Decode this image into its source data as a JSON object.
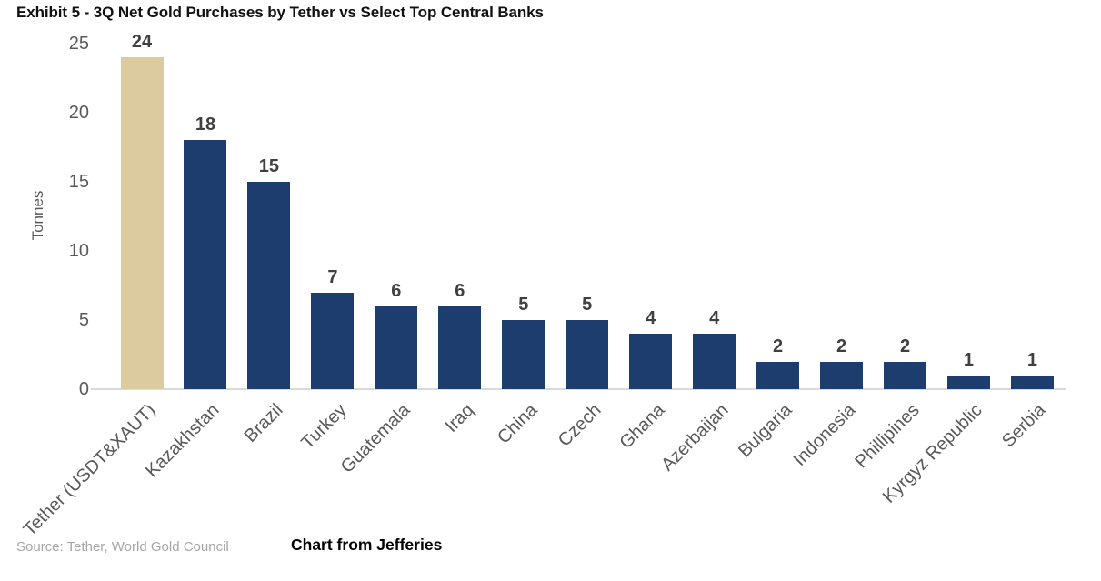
{
  "title": "Exhibit 5 - 3Q Net Gold Purchases by Tether vs Select Top Central Banks",
  "source": "Source: Tether, World Gold Council",
  "caption": "Chart from Jefferies",
  "colors": {
    "tether_bar": "#DBCB9E",
    "bank_bar": "#1C3D6E",
    "axis_line": "#D9D9D9",
    "tick_text": "#595959",
    "value_text": "#404040",
    "title_text": "#111111",
    "source_text": "#A6A6A6"
  },
  "chart_data": {
    "type": "bar",
    "title": "Exhibit 5 - 3Q Net Gold Purchases by Tether vs Select Top Central Banks",
    "xlabel": "",
    "ylabel": "Tonnes",
    "ylim": [
      0,
      25
    ],
    "yticks": [
      0,
      5,
      10,
      15,
      20,
      25
    ],
    "grid": false,
    "legend": false,
    "highlight_index": 0,
    "categories": [
      "Tether (USDT&XAUT)",
      "Kazakhstan",
      "Brazil",
      "Turkey",
      "Guatemala",
      "Iraq",
      "China",
      "Czech",
      "Ghana",
      "Azerbaijan",
      "Bulgaria",
      "Indonesia",
      "Phillipines",
      "Kyrgyz Republic",
      "Serbia"
    ],
    "values": [
      24,
      18,
      15,
      7,
      6,
      6,
      5,
      5,
      4,
      4,
      2,
      2,
      2,
      1,
      1
    ],
    "bar_value_labels": [
      "24",
      "18",
      "15",
      "7",
      "6",
      "6",
      "5",
      "5",
      "4",
      "4",
      "2",
      "2",
      "2",
      "1",
      "1"
    ]
  }
}
